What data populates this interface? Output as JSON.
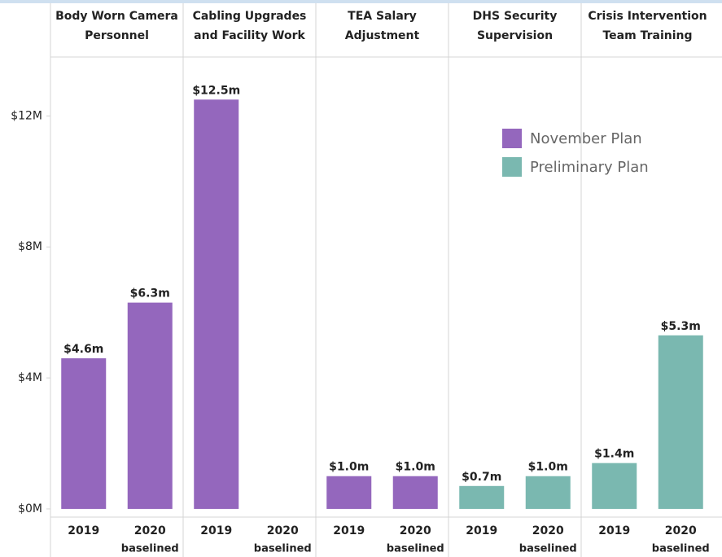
{
  "chart_data": {
    "type": "bar",
    "facets": [
      [
        "Body Worn Camera",
        "Personnel"
      ],
      [
        "Cabling Upgrades",
        "and Facility Work"
      ],
      [
        "TEA Salary",
        "Adjustment"
      ],
      [
        "DHS Security",
        "Supervision"
      ],
      [
        "Crisis Intervention",
        "Team Training"
      ]
    ],
    "categories": [
      [
        "2019"
      ],
      [
        "2020",
        "baselined"
      ],
      [
        "2019"
      ],
      [
        "2020",
        "baselined"
      ],
      [
        "2019"
      ],
      [
        "2020",
        "baselined"
      ],
      [
        "2019"
      ],
      [
        "2020",
        "baselined"
      ],
      [
        "2019"
      ],
      [
        "2020",
        "baselined"
      ]
    ],
    "series": [
      {
        "name": "November Plan",
        "color": "#9467bd",
        "values": [
          4.6,
          6.3,
          12.5,
          null,
          1.0,
          1.0,
          null,
          null,
          null,
          null
        ],
        "value_labels": [
          "$4.6m",
          "$6.3m",
          "$12.5m",
          null,
          "$1.0m",
          "$1.0m",
          null,
          null,
          null,
          null
        ]
      },
      {
        "name": "Preliminary Plan",
        "color": "#7ab8b0",
        "values": [
          null,
          null,
          null,
          null,
          null,
          null,
          0.7,
          1.0,
          1.4,
          5.3
        ],
        "value_labels": [
          null,
          null,
          null,
          null,
          null,
          null,
          "$0.7m",
          "$1.0m",
          "$1.4m",
          "$5.3m"
        ]
      }
    ],
    "ylim": [
      -0.25,
      13.8
    ],
    "yticks": [
      {
        "value": 0,
        "label": "$0M"
      },
      {
        "value": 4,
        "label": "$4M"
      },
      {
        "value": 8,
        "label": "$8M"
      },
      {
        "value": 12,
        "label": "$12M"
      }
    ],
    "legend": "upper right"
  }
}
